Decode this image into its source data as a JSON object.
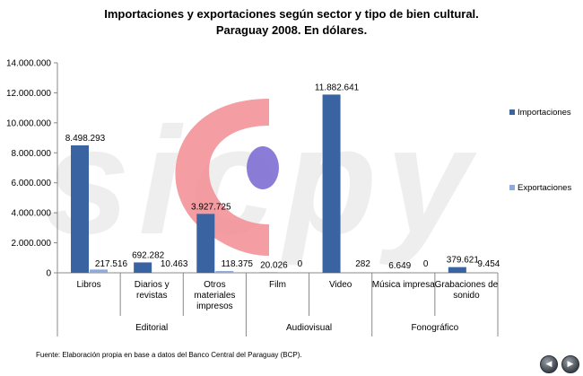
{
  "chart_data": {
    "type": "bar",
    "title": [
      "Importaciones  y exportaciones  según sector y tipo de bien cultural.",
      "Paraguay  2008. En dólares."
    ],
    "categories": [
      "Libros",
      "Diarios y revistas",
      "Otros materiales impresos",
      "Film",
      "Video",
      "Música impresa",
      "Grabaciones de sonido"
    ],
    "category_lines": [
      [
        "Libros"
      ],
      [
        "Diarios y",
        "revistas"
      ],
      [
        "Otros",
        "materiales",
        "impresos"
      ],
      [
        "Film"
      ],
      [
        "Video"
      ],
      [
        "Música impresa"
      ],
      [
        "Grabaciones de",
        "sonido"
      ]
    ],
    "groups": [
      {
        "label": "Editorial",
        "categories": [
          "Libros",
          "Diarios y revistas",
          "Otros materiales impresos"
        ]
      },
      {
        "label": "Audiovisual",
        "categories": [
          "Film",
          "Video"
        ]
      },
      {
        "label": "Fonográfico",
        "categories": [
          "Música impresa",
          "Grabaciones de sonido"
        ]
      }
    ],
    "series": [
      {
        "name": "Importaciones",
        "color": "#3a64a1",
        "values": [
          8498293,
          692282,
          3927725,
          20026,
          11882641,
          6649,
          379621
        ],
        "labels": [
          "8.498.293",
          "692.282",
          "3.927.725",
          "20.026",
          "11.882.641",
          "6.649",
          "379.621"
        ]
      },
      {
        "name": "Exportaciones",
        "color": "#8fa9da",
        "values": [
          217516,
          10463,
          118375,
          0,
          282,
          0,
          9454
        ],
        "labels": [
          "217.516",
          "10.463",
          "118.375",
          "0",
          "282",
          "0",
          "9.454"
        ]
      }
    ],
    "yticks": [
      0,
      2000000,
      4000000,
      6000000,
      8000000,
      10000000,
      12000000,
      14000000
    ],
    "ytick_labels": [
      "0",
      "2.000.000",
      "4.000.000",
      "6.000.000",
      "8.000.000",
      "10.000.000",
      "12.000.000",
      "14.000.000"
    ],
    "ylim": [
      0,
      14000000
    ],
    "grid": false,
    "legend_position": "right"
  },
  "footer": {
    "source": "Fuente:  Elaboración propia en base a datos del Banco Central del Paraguay (BCP)."
  },
  "watermark_text": "sicpy",
  "nav": {
    "prev_icon": "◀",
    "next_icon": "▶"
  }
}
